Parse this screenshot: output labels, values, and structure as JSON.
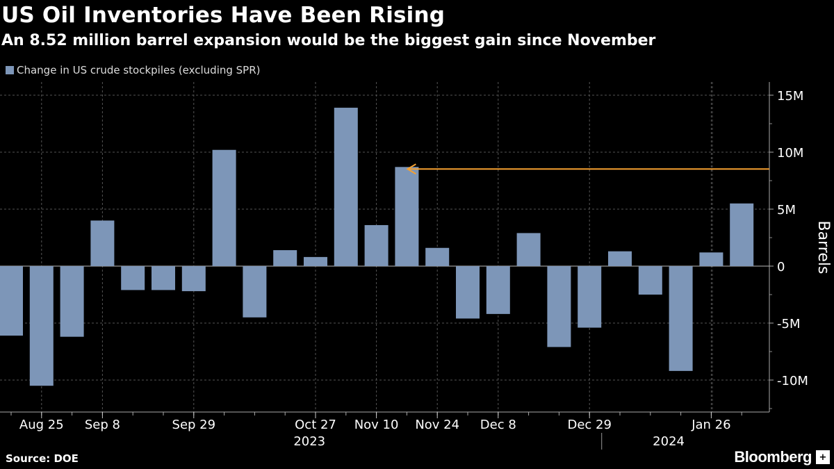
{
  "header": {
    "title": "US Oil Inventories Have Been Rising",
    "subtitle": "An 8.52 million barrel expansion would be the biggest gain since November"
  },
  "legend": {
    "label": "Change in US crude stockpiles (excluding SPR)"
  },
  "footer": {
    "source": "Source: DOE",
    "brand": "Bloomberg",
    "brand_badge": "+"
  },
  "colors": {
    "bar": "#7d96b8",
    "arrow": "#f5a030",
    "grid": "#555555",
    "text": "#ffffff"
  },
  "chart_data": {
    "type": "bar",
    "title": "US Oil Inventories Have Been Rising",
    "subtitle": "An 8.52 million barrel expansion would be the biggest gain since November",
    "ylabel": "Barrels",
    "xlabel": "",
    "ylim": [
      -12.8,
      16.2
    ],
    "yticks": [
      15,
      10,
      5,
      0,
      -5,
      -10
    ],
    "ytick_labels": [
      "15M",
      "10M",
      "5M",
      "0",
      "-5M",
      "-10M"
    ],
    "series": [
      {
        "name": "Change in US crude stockpiles (excluding SPR)",
        "unit": "million barrels",
        "values": [
          -6.1,
          -10.5,
          -6.2,
          4.0,
          -2.1,
          -2.1,
          -2.2,
          10.2,
          -4.5,
          1.4,
          0.8,
          13.9,
          3.6,
          8.7,
          1.6,
          -4.6,
          -4.2,
          2.9,
          -7.1,
          -5.4,
          1.3,
          -2.5,
          -9.2,
          1.2,
          5.5
        ]
      }
    ],
    "week_index_of_ticks": [
      1,
      3,
      6,
      10,
      12,
      14,
      16,
      19,
      23
    ],
    "tick_labels": [
      "Aug 25",
      "Sep 8",
      "Sep 29",
      "Oct 27",
      "Nov 10",
      "Nov 24",
      "Dec 8",
      "Dec 29",
      "Jan 26"
    ],
    "year_labels": [
      {
        "label": "2023",
        "week_index": 9.8
      },
      {
        "label": "2024",
        "week_index": 21.6
      }
    ],
    "year_divider_week_index": 19.4,
    "annotation": {
      "type": "arrow",
      "value": 8.52,
      "from_bar_index": 13,
      "label": "8.52 million barrel expansion"
    }
  }
}
